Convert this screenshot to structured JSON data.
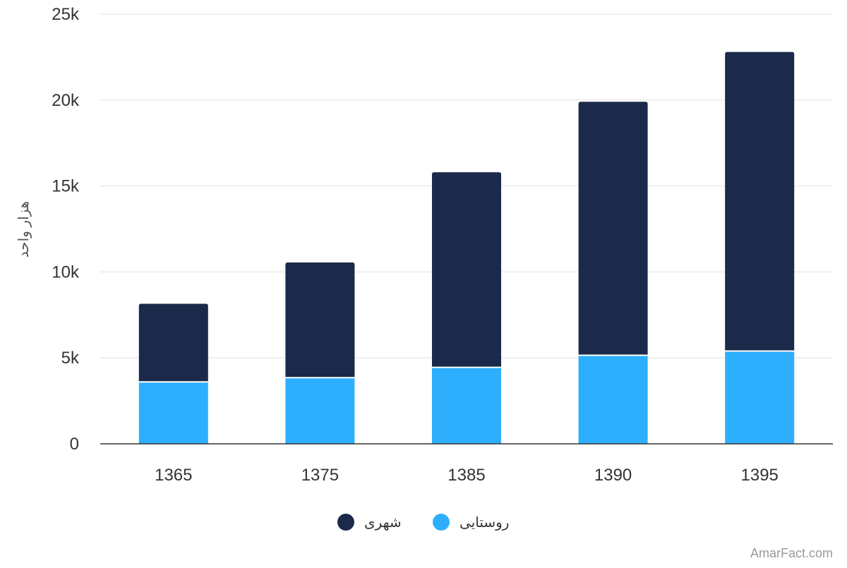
{
  "chart_data": {
    "type": "bar",
    "stacked": true,
    "categories": [
      "1365",
      "1375",
      "1385",
      "1390",
      "1395"
    ],
    "series": [
      {
        "name": "روستایی",
        "color": "#2eaffe",
        "values": [
          3600,
          3850,
          4450,
          5150,
          5400
        ]
      },
      {
        "name": "شهری",
        "color": "#1b2a4b",
        "values": [
          4550,
          6700,
          11350,
          14750,
          17400
        ]
      }
    ],
    "xlabel": "",
    "ylabel": "هزار واحد",
    "ylim": [
      0,
      25000
    ],
    "yticks": [
      0,
      5000,
      10000,
      15000,
      20000,
      25000
    ],
    "ytick_labels": [
      "0",
      "5k",
      "10k",
      "15k",
      "20k",
      "25k"
    ],
    "grid": true,
    "legend": {
      "placement": "bottom-center",
      "entries": [
        "شهری",
        "روستایی"
      ]
    },
    "watermark": "AmarFact.com",
    "colors": {
      "grid": "#e0e0e0",
      "axis": "#333333",
      "text": "#333333"
    }
  }
}
